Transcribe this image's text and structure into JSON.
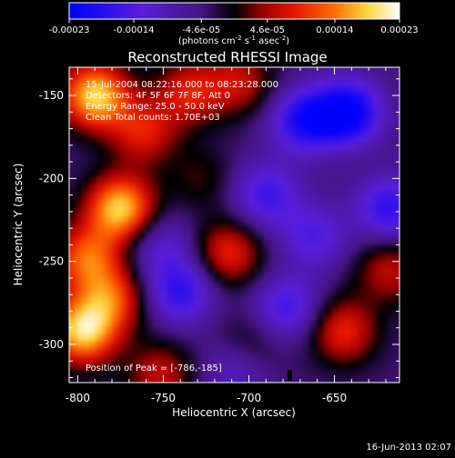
{
  "colorbar": {
    "tick_labels": [
      "-0.00023",
      "-0.00014",
      "-4.6e-05",
      "4.6e-05",
      "0.00014",
      "0.00023"
    ],
    "units": {
      "prefix": "(photons cm",
      "exp1": "-2",
      "mid1": " s",
      "exp2": "-1",
      "mid2": " asec",
      "exp3": "-2",
      "suffix": ")"
    },
    "range": [
      -0.00023,
      0.00023
    ]
  },
  "plot": {
    "title": "Reconstructed RHESSI Image",
    "xlabel": "Heliocentric X (arcsec)",
    "ylabel": "Heliocentric Y (arcsec)",
    "x_ticks": [
      "-800",
      "-750",
      "-700",
      "-650"
    ],
    "y_ticks": [
      "-150",
      "-200",
      "-250",
      "-300"
    ],
    "xlim": [
      -805,
      -612
    ],
    "ylim": [
      -323,
      -133
    ],
    "annotations": {
      "time_range": "15-Jul-2004 08:22:16.000 to 08:23:28.000",
      "detectors": "Detectors: 4F 5F 6F 7F 8F, Att 0",
      "energy": "Energy Range: 25.0 - 50.0 keV",
      "clean": "Clean     Total counts: 1.70E+03",
      "peak": "Position of Peak = [-786,-185]"
    }
  },
  "footer": {
    "timestamp": "16-Jun-2013 02:07"
  },
  "colors": {
    "background": "#000000",
    "text": "#ffffff"
  },
  "chart_data": {
    "type": "heatmap",
    "title": "Reconstructed RHESSI Image",
    "xlabel": "Heliocentric X (arcsec)",
    "ylabel": "Heliocentric Y (arcsec)",
    "xlim": [
      -805,
      -612
    ],
    "ylim": [
      -323,
      -133
    ],
    "colorbar_range": [
      -0.00023,
      0.00023
    ],
    "peak_position": [
      -786,
      -185
    ],
    "grid": false,
    "sources": [
      {
        "x": -790,
        "y": -150,
        "value": 0.00023
      },
      {
        "x": -775,
        "y": -218,
        "value": 0.00023
      },
      {
        "x": -797,
        "y": -292,
        "value": 0.00023
      },
      {
        "x": -762,
        "y": -172,
        "value": 0.00012
      },
      {
        "x": -795,
        "y": -248,
        "value": 0.00016
      },
      {
        "x": -735,
        "y": -148,
        "value": 0.00012
      },
      {
        "x": -705,
        "y": -142,
        "value": 0.0001
      },
      {
        "x": -712,
        "y": -245,
        "value": 0.00013
      },
      {
        "x": -780,
        "y": -272,
        "value": 0.00014
      },
      {
        "x": -645,
        "y": -292,
        "value": 0.00013
      },
      {
        "x": -618,
        "y": -255,
        "value": 0.0001
      },
      {
        "x": -752,
        "y": -318,
        "value": 0.0001
      },
      {
        "x": -700,
        "y": -300,
        "value": 6e-05
      },
      {
        "x": -728,
        "y": -200,
        "value": 5e-05
      },
      {
        "x": -668,
        "y": -165,
        "value": -0.00016
      },
      {
        "x": -642,
        "y": -160,
        "value": -0.0002
      },
      {
        "x": -690,
        "y": -210,
        "value": -0.00012
      },
      {
        "x": -740,
        "y": -268,
        "value": -0.00014
      },
      {
        "x": -678,
        "y": -278,
        "value": -0.00012
      },
      {
        "x": -662,
        "y": -235,
        "value": -0.0001
      },
      {
        "x": -618,
        "y": -218,
        "value": -0.00014
      },
      {
        "x": -752,
        "y": -240,
        "value": -8e-05
      },
      {
        "x": -708,
        "y": -315,
        "value": -8e-05
      }
    ]
  }
}
